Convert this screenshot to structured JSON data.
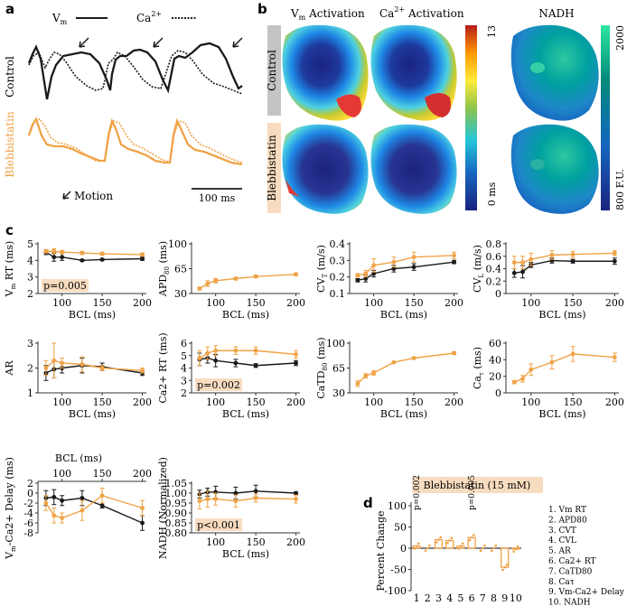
{
  "colors": {
    "control": "#1a1a1a",
    "blebbistatin": "#f0a347",
    "p_badge": "#f8dcc0",
    "tag_bg_control": "#c4c4c4",
    "tag_bg_blebb": "#f8dcc0"
  },
  "panel_a": {
    "letter": "a",
    "legend_vm": "V",
    "legend_vm_sub": "m",
    "legend_ca": "Ca",
    "legend_ca_sup": "2+",
    "control_label": "Control",
    "blebb_label": "Blebbistatin",
    "motion_label": "Motion",
    "scale_label": "100 ms"
  },
  "panel_b": {
    "letter": "b",
    "vm_title": "V",
    "vm_title_sub": "m",
    "vm_title_rest": " Activation",
    "ca_title": "Ca",
    "ca_title_sup": "2+",
    "ca_title_rest": " Activation",
    "nadh_title": "NADH",
    "row_control": "Control",
    "row_blebb": "Blebbistatin",
    "scale_max": "13",
    "scale_min": "0 ms",
    "nadh_max": "2000",
    "nadh_min": "800 F.U."
  },
  "panel_c": {
    "letter": "c",
    "xlabel": "BCL (ms)",
    "charts": [
      {
        "ylabel": "V",
        "ylabel_sub": "m",
        "ylabel_rest": " RT (ms)",
        "yticks": [
          "2",
          "3",
          "4",
          "5"
        ],
        "ylim": [
          2,
          5
        ],
        "xticks": [
          "100",
          "150",
          "200"
        ],
        "p": "p=0.005",
        "series": [
          {
            "name": "Control",
            "x": [
              80,
              90,
              100,
              125,
              150,
              200
            ],
            "y": [
              4.5,
              4.2,
              4.2,
              4.0,
              4.05,
              4.1
            ],
            "err": [
              0.15,
              0.25,
              0.2,
              0.05,
              0.05,
              0.1
            ]
          },
          {
            "name": "Blebbistatin",
            "x": [
              80,
              90,
              100,
              125,
              150,
              200
            ],
            "y": [
              4.55,
              4.55,
              4.5,
              4.45,
              4.4,
              4.35
            ],
            "err": [
              0.1,
              0.15,
              0.1,
              0.1,
              0.1,
              0.1
            ]
          }
        ]
      },
      {
        "ylabel": "APD",
        "ylabel_sub": "80",
        "ylabel_rest": " (ms)",
        "yticks": [
          "30",
          "65",
          "100"
        ],
        "ylim": [
          30,
          100
        ],
        "xticks": [
          "100",
          "150",
          "200"
        ],
        "p": "",
        "series": [
          {
            "name": "Blebbistatin",
            "x": [
              80,
              90,
              100,
              125,
              150,
              200
            ],
            "y": [
              37,
              44,
              48,
              51,
              54,
              57
            ],
            "err": [
              2,
              4,
              3,
              2,
              2,
              2
            ]
          }
        ]
      },
      {
        "ylabel": "CV",
        "ylabel_sub": "T",
        "ylabel_rest": " (m/s)",
        "yticks": [
          "0.1",
          "0.2",
          "0.3",
          "0.4"
        ],
        "ylim": [
          0.1,
          0.4
        ],
        "xticks": [
          "100",
          "150",
          "200"
        ],
        "p": "",
        "series": [
          {
            "name": "Control",
            "x": [
              80,
              90,
              100,
              125,
              150,
              200
            ],
            "y": [
              0.18,
              0.19,
              0.22,
              0.25,
              0.26,
              0.29
            ],
            "err": [
              0.01,
              0.02,
              0.02,
              0.02,
              0.02,
              0.01
            ]
          },
          {
            "name": "Blebbistatin",
            "x": [
              80,
              90,
              100,
              125,
              150,
              200
            ],
            "y": [
              0.21,
              0.22,
              0.27,
              0.29,
              0.32,
              0.33
            ],
            "err": [
              0.01,
              0.02,
              0.04,
              0.03,
              0.03,
              0.02
            ]
          }
        ]
      },
      {
        "ylabel": "CV",
        "ylabel_sub": "L",
        "ylabel_rest": " (m/s)",
        "yticks": [
          "0",
          "0.2",
          "0.4",
          "0.6",
          "0.8"
        ],
        "ylim": [
          0,
          0.8
        ],
        "xticks": [
          "100",
          "150",
          "200"
        ],
        "p": "",
        "series": [
          {
            "name": "Control",
            "x": [
              80,
              90,
              100,
              125,
              150,
              200
            ],
            "y": [
              0.33,
              0.35,
              0.46,
              0.53,
              0.52,
              0.52
            ],
            "err": [
              0.07,
              0.1,
              0.04,
              0.04,
              0.03,
              0.05
            ]
          },
          {
            "name": "Blebbistatin",
            "x": [
              80,
              90,
              100,
              125,
              150,
              200
            ],
            "y": [
              0.5,
              0.5,
              0.55,
              0.62,
              0.63,
              0.65
            ],
            "err": [
              0.1,
              0.1,
              0.1,
              0.07,
              0.05,
              0.04
            ]
          }
        ]
      },
      {
        "ylabel": "AR",
        "ylabel_sub": "",
        "ylabel_rest": "",
        "yticks": [
          "1",
          "2",
          "3"
        ],
        "ylim": [
          1,
          3
        ],
        "xticks": [
          "100",
          "150",
          "200"
        ],
        "p": "",
        "series": [
          {
            "name": "Control",
            "x": [
              80,
              90,
              100,
              125,
              150,
              200
            ],
            "y": [
              1.8,
              1.95,
              2.0,
              2.1,
              2.05,
              1.8
            ],
            "err": [
              0.3,
              0.35,
              0.2,
              0.3,
              0.15,
              0.1
            ]
          },
          {
            "name": "Blebbistatin",
            "x": [
              80,
              90,
              100,
              125,
              150,
              200
            ],
            "y": [
              2.0,
              2.3,
              2.2,
              2.15,
              2.0,
              1.9
            ],
            "err": [
              0.3,
              0.7,
              0.2,
              0.3,
              0.1,
              0.1
            ]
          }
        ]
      },
      {
        "ylabel": "Ca",
        "ylabel_sub": "",
        "ylabel_rest": "2+ RT (ms)",
        "yticks": [
          "2",
          "3",
          "4",
          "5",
          "6"
        ],
        "ylim": [
          2,
          6
        ],
        "xticks": [
          "100",
          "150",
          "200"
        ],
        "p": "p=0.002",
        "series": [
          {
            "name": "Control",
            "x": [
              80,
              90,
              100,
              125,
              150,
              200
            ],
            "y": [
              4.7,
              4.8,
              4.6,
              4.4,
              4.2,
              4.4
            ],
            "err": [
              0.5,
              0.4,
              0.5,
              0.3,
              0.15,
              0.2
            ]
          },
          {
            "name": "Blebbistatin",
            "x": [
              80,
              90,
              100,
              125,
              150,
              200
            ],
            "y": [
              4.8,
              5.2,
              5.4,
              5.4,
              5.4,
              5.1
            ],
            "err": [
              0.6,
              0.5,
              0.4,
              0.3,
              0.3,
              0.3
            ]
          }
        ]
      },
      {
        "ylabel": "CaTD",
        "ylabel_sub": "80",
        "ylabel_rest": " (ms)",
        "yticks": [
          "30",
          "65",
          "100"
        ],
        "ylim": [
          30,
          100
        ],
        "xticks": [
          "100",
          "150",
          "200"
        ],
        "p": "",
        "series": [
          {
            "name": "Blebbistatin",
            "x": [
              80,
              90,
              100,
              125,
              150,
              200
            ],
            "y": [
              43,
              54,
              58,
              73,
              79,
              86
            ],
            "err": [
              4,
              3,
              3,
              1,
              1,
              2
            ]
          }
        ]
      },
      {
        "ylabel": "Ca",
        "ylabel_sub": "τ",
        "ylabel_rest": " (ms)",
        "yticks": [
          "0",
          "20",
          "40",
          "60"
        ],
        "ylim": [
          0,
          60
        ],
        "xticks": [
          "100",
          "150",
          "200"
        ],
        "p": "",
        "series": [
          {
            "name": "Blebbistatin",
            "x": [
              80,
              90,
              100,
              125,
              150,
              200
            ],
            "y": [
              13,
              17,
              28,
              37,
              47,
              43
            ],
            "err": [
              2,
              4,
              7,
              8,
              9,
              5
            ]
          }
        ]
      },
      {
        "ylabel": "V",
        "ylabel_sub": "m",
        "ylabel_rest": "-Ca2+ Delay (ms)",
        "yticks": [
          "-8",
          "-6",
          "-4",
          "-2",
          "0",
          "2"
        ],
        "ylim": [
          -8,
          2
        ],
        "xticks": [
          "100",
          "150",
          "200"
        ],
        "p": "",
        "top_axis": true,
        "series": [
          {
            "name": "Control",
            "x": [
              80,
              90,
              100,
              125,
              150,
              200
            ],
            "y": [
              -1.0,
              -0.8,
              -1.5,
              -1.0,
              -2.5,
              -6.0
            ],
            "err": [
              1.5,
              1.5,
              1.0,
              1.5,
              0.5,
              1.5
            ]
          },
          {
            "name": "Blebbistatin",
            "x": [
              80,
              90,
              100,
              125,
              150,
              200
            ],
            "y": [
              -2.0,
              -4.5,
              -5.0,
              -3.5,
              -0.5,
              -3.0
            ],
            "err": [
              1.5,
              1.5,
              1.0,
              2.0,
              1.5,
              1.5
            ]
          }
        ]
      },
      {
        "ylabel": "NADH (Normalized)",
        "ylabel_sub": "",
        "ylabel_rest": "",
        "yticks": [
          "0.80",
          "0.85",
          "0.90",
          "0.95",
          "1.00",
          "1.05"
        ],
        "ylim": [
          0.8,
          1.05
        ],
        "xticks": [
          "100",
          "150",
          "200"
        ],
        "p": "p<0.001",
        "series": [
          {
            "name": "Control",
            "x": [
              80,
              90,
              100,
              125,
              150,
              200
            ],
            "y": [
              0.995,
              1.005,
              1.005,
              1.0,
              1.01,
              1.0
            ],
            "err": [
              0.02,
              0.02,
              0.03,
              0.03,
              0.03,
              0.005
            ]
          },
          {
            "name": "Blebbistatin",
            "x": [
              80,
              90,
              100,
              125,
              150,
              200
            ],
            "y": [
              0.96,
              0.97,
              0.97,
              0.96,
              0.975,
              0.97
            ],
            "err": [
              0.04,
              0.04,
              0.03,
              0.03,
              0.02,
              0.02
            ]
          }
        ]
      }
    ]
  },
  "panel_d": {
    "letter": "d",
    "title": "Blebbistatin (15 mM)",
    "ylabel": "Percent Change",
    "yticks": [
      "-100",
      "-50",
      "0",
      "50",
      "100"
    ],
    "xticks": [
      "1",
      "2",
      "3",
      "4",
      "5",
      "6",
      "7",
      "8",
      "9",
      "10"
    ],
    "p1": "p=0.002",
    "p6": "p=0.005",
    "legend": [
      "1. Vm RT",
      "2. APD80",
      "3. CVT",
      "4. CVL",
      "5. AR",
      "6. Ca2+ RT",
      "7. CaTD80",
      "8. Caτ",
      "9. Vm-Ca2+ Delay",
      "10. NADH"
    ]
  },
  "chart_data": {
    "type": "bar",
    "title": "Blebbistatin (15 mM)",
    "ylabel": "Percent Change",
    "categories": [
      "1",
      "2",
      "3",
      "4",
      "5",
      "6",
      "7",
      "8",
      "9",
      "10"
    ],
    "values": [
      5,
      0,
      20,
      18,
      5,
      25,
      0,
      0,
      -45,
      -2
    ],
    "ylim": [
      -100,
      100
    ]
  }
}
